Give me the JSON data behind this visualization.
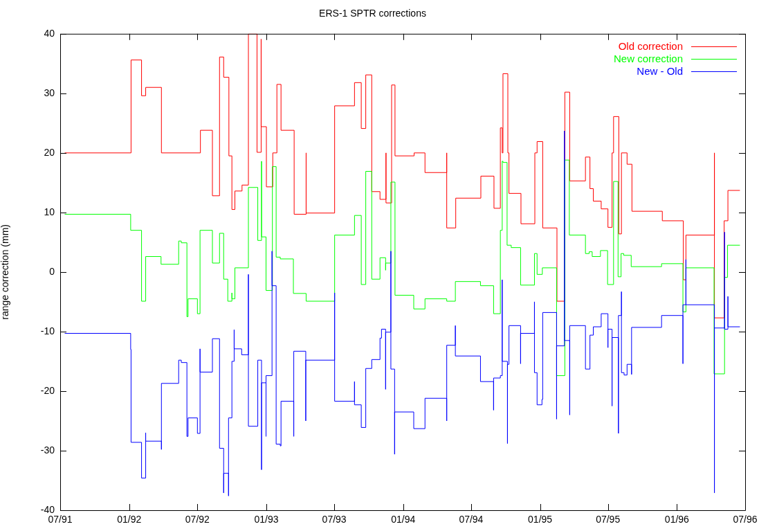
{
  "chart_data": {
    "type": "step",
    "title": "ERS-1 SPTR corrections",
    "ylabel": "range correction (mm)",
    "xlim": [
      "1991-07-01",
      "1996-07-01"
    ],
    "xticks": [
      {
        "value": "1991-07-01",
        "label": "07/91"
      },
      {
        "value": "1992-01-01",
        "label": "01/92"
      },
      {
        "value": "1992-07-01",
        "label": "07/92"
      },
      {
        "value": "1993-01-01",
        "label": "01/93"
      },
      {
        "value": "1993-07-01",
        "label": "07/93"
      },
      {
        "value": "1994-01-01",
        "label": "01/94"
      },
      {
        "value": "1994-07-01",
        "label": "07/94"
      },
      {
        "value": "1995-01-01",
        "label": "01/95"
      },
      {
        "value": "1995-07-01",
        "label": "07/95"
      },
      {
        "value": "1996-01-01",
        "label": "01/96"
      },
      {
        "value": "1996-07-01",
        "label": "07/96"
      }
    ],
    "ylim": [
      -40,
      40
    ],
    "yticks": [
      -40,
      -30,
      -20,
      -10,
      0,
      10,
      20,
      30,
      40
    ],
    "legend": "top right",
    "series": [
      {
        "name": "Old correction",
        "color": "#ff0000",
        "x": [
          "1991-07-13",
          "1992-01-06",
          "1992-02-03",
          "1992-02-14",
          "1992-03-27",
          "1992-07-09",
          "1992-08-10",
          "1992-08-29",
          "1992-09-09",
          "1992-09-23",
          "1992-10-01",
          "1992-10-09",
          "1992-10-28",
          "1992-11-14",
          "1992-12-07",
          "1992-12-18",
          "1992-12-18",
          "1993-01-01",
          "1993-01-18",
          "1993-01-29",
          "1993-02-09",
          "1993-03-16",
          "1993-04-17",
          "1993-04-17",
          "1993-07-02",
          "1993-08-24",
          "1993-09-11",
          "1993-09-23",
          "1993-10-09",
          "1993-10-31",
          "1993-11-16",
          "1993-11-16",
          "1993-12-01",
          "1993-12-10",
          "1994-01-30",
          "1994-02-28",
          "1994-04-27",
          "1994-04-27",
          "1994-05-21",
          "1994-07-27",
          "1994-08-31",
          "1994-09-17",
          "1994-09-22",
          "1994-09-24",
          "1994-10-07",
          "1994-10-10",
          "1994-11-11",
          "1994-12-18",
          "1994-12-24",
          "1995-01-08",
          "1995-02-15",
          "1995-03-08",
          "1995-03-21",
          "1995-05-02",
          "1995-05-14",
          "1995-05-23",
          "1995-06-13",
          "1995-07-01",
          "1995-07-12",
          "1995-07-16",
          "1995-07-30",
          "1995-08-06",
          "1995-08-21",
          "1995-09-03",
          "1995-11-23",
          "1996-01-18",
          "1996-01-25",
          "1996-04-10",
          "1996-04-10",
          "1996-05-06",
          "1996-05-16",
          "1996-06-17"
        ],
        "values": [
          20,
          35.6,
          29.6,
          31.0,
          20,
          23.8,
          12.8,
          36.1,
          32.7,
          19.5,
          10.5,
          13.6,
          14.6,
          40,
          20.1,
          39.1,
          24.4,
          14.3,
          20,
          31.5,
          23.8,
          9.7,
          20,
          9.9,
          27.9,
          31.8,
          24.1,
          33.1,
          13.5,
          12.2,
          20,
          11.6,
          31.4,
          19.5,
          20,
          16.7,
          20,
          7.4,
          12.4,
          16.1,
          10.7,
          24.2,
          20,
          33.3,
          20,
          13.2,
          8.1,
          20,
          21.9,
          7.4,
          -4.9,
          30.2,
          15.3,
          19.3,
          14.0,
          11.9,
          10.6,
          7.5,
          20,
          26.1,
          6.4,
          20,
          18.1,
          10.2,
          8.6,
          -1.3,
          6.2,
          20,
          -7.7,
          8.6,
          13.7,
          13.7
        ]
      },
      {
        "name": "New correction",
        "color": "#00ff00",
        "x": [
          "1991-07-13",
          "1992-01-05",
          "1992-02-03",
          "1992-02-14",
          "1992-03-26",
          "1992-05-12",
          "1992-05-19",
          "1992-06-03",
          "1992-06-06",
          "1992-07-01",
          "1992-07-08",
          "1992-08-10",
          "1992-08-29",
          "1992-09-09",
          "1992-09-20",
          "1992-10-01",
          "1992-10-01",
          "1992-10-09",
          "1992-11-14",
          "1992-12-09",
          "1992-12-19",
          "1992-12-19",
          "1992-12-31",
          "1993-01-17",
          "1993-01-27",
          "1993-02-07",
          "1993-03-14",
          "1993-04-17",
          "1993-07-02",
          "1993-08-24",
          "1993-09-11",
          "1993-09-23",
          "1993-10-09",
          "1993-10-31",
          "1993-11-15",
          "1993-11-15",
          "1993-11-29",
          "1993-12-10",
          "1994-01-29",
          "1994-02-28",
          "1994-04-27",
          "1994-05-20",
          "1994-07-26",
          "1994-08-30",
          "1994-09-17",
          "1994-09-22",
          "1994-09-24",
          "1994-10-05",
          "1994-10-16",
          "1994-11-10",
          "1994-12-17",
          "1994-12-24",
          "1995-01-07",
          "1995-02-14",
          "1995-03-08",
          "1995-03-20",
          "1995-05-02",
          "1995-05-12",
          "1995-05-20",
          "1995-06-11",
          "1995-06-30",
          "1995-07-16",
          "1995-07-28",
          "1995-08-05",
          "1995-08-12",
          "1995-09-01",
          "1995-11-21",
          "1996-01-17",
          "1996-01-25",
          "1996-04-09",
          "1996-05-07",
          "1996-05-15",
          "1996-06-17"
        ],
        "values": [
          9.7,
          7.0,
          -4.9,
          2.6,
          1.3,
          5.2,
          4.9,
          -7.5,
          -4.5,
          -7.0,
          7.0,
          1.5,
          6.5,
          -1.2,
          -4.9,
          -3.5,
          -4.5,
          0.7,
          14.2,
          5.3,
          18.6,
          5.9,
          -3.1,
          17.7,
          2.5,
          2.2,
          -3.6,
          -4.9,
          6.2,
          9.5,
          -2.1,
          16.9,
          -1.2,
          2.4,
          0.3,
          1.5,
          15.1,
          -3.9,
          -6.2,
          -4.5,
          -4.9,
          -1.6,
          -2.3,
          -7.0,
          7.0,
          18.6,
          18.4,
          4.5,
          4.1,
          -2.2,
          3.1,
          -0.4,
          0.7,
          -17.4,
          18.8,
          6.2,
          3.1,
          3.4,
          2.6,
          3.6,
          -2.1,
          15.2,
          -0.8,
          3.1,
          2.8,
          0.9,
          1.4,
          -6.7,
          0.7,
          -17.1,
          -0.9,
          4.5,
          4.5
        ]
      },
      {
        "name": "New - Old",
        "color": "#0000ff",
        "x": [
          "1991-07-13",
          "1992-01-05",
          "1992-01-06",
          "1992-02-03",
          "1992-02-14",
          "1992-02-14",
          "1992-03-27",
          "1992-03-27",
          "1992-05-12",
          "1992-05-19",
          "1992-06-03",
          "1992-06-06",
          "1992-07-01",
          "1992-07-08",
          "1992-07-08",
          "1992-08-10",
          "1992-08-29",
          "1992-09-09",
          "1992-09-09",
          "1992-09-22",
          "1992-09-22",
          "1992-10-01",
          "1992-10-07",
          "1992-10-07",
          "1992-10-27",
          "1992-11-14",
          "1992-11-14",
          "1992-12-09",
          "1992-12-19",
          "1992-12-19",
          "1992-12-31",
          "1992-12-31",
          "1993-01-16",
          "1993-01-16",
          "1993-01-27",
          "1993-02-07",
          "1993-02-09",
          "1993-03-15",
          "1993-03-15",
          "1993-04-16",
          "1993-04-16",
          "1993-07-02",
          "1993-07-02",
          "1993-08-24",
          "1993-08-24",
          "1993-09-11",
          "1993-09-23",
          "1993-10-09",
          "1993-10-31",
          "1993-11-04",
          "1993-11-15",
          "1993-11-15",
          "1993-11-29",
          "1993-11-29",
          "1993-12-09",
          "1993-12-09",
          "1994-01-29",
          "1994-02-28",
          "1994-04-27",
          "1994-04-27",
          "1994-05-20",
          "1994-05-20",
          "1994-07-26",
          "1994-08-30",
          "1994-08-30",
          "1994-09-17",
          "1994-09-22",
          "1994-09-22",
          "1994-10-06",
          "1994-10-06",
          "1994-10-10",
          "1994-11-10",
          "1994-11-10",
          "1994-12-17",
          "1994-12-17",
          "1994-12-24",
          "1995-01-06",
          "1995-01-08",
          "1995-02-14",
          "1995-02-14",
          "1995-03-07",
          "1995-03-07",
          "1995-03-21",
          "1995-03-21",
          "1995-05-02",
          "1995-05-14",
          "1995-05-23",
          "1995-06-13",
          "1995-07-01",
          "1995-07-01",
          "1995-07-12",
          "1995-07-12",
          "1995-07-29",
          "1995-07-29",
          "1995-08-06",
          "1995-08-06",
          "1995-08-13",
          "1995-08-21",
          "1995-09-02",
          "1995-09-02",
          "1995-11-21",
          "1996-01-17",
          "1996-01-17",
          "1996-01-25",
          "1996-01-25",
          "1996-04-10",
          "1996-04-10",
          "1996-05-07",
          "1996-05-07",
          "1996-05-16",
          "1996-05-16",
          "1996-06-17"
        ],
        "values": [
          -10.3,
          -13.0,
          -28.6,
          -34.6,
          -27.0,
          -28.4,
          -29.8,
          -18.7,
          -14.8,
          -15.2,
          -27.6,
          -24.5,
          -27.1,
          -12.9,
          -16.8,
          -11.2,
          -29.6,
          -37.1,
          -33.8,
          -37.6,
          -24.5,
          -15.0,
          -9.7,
          -12.9,
          -13.9,
          -0.4,
          -25.9,
          -14.8,
          -33.2,
          -18.6,
          -27.6,
          -17.4,
          3.5,
          -2.3,
          -28.9,
          -29.2,
          -21.7,
          -27.6,
          -13.3,
          -25.0,
          -14.8,
          -3.5,
          -21.7,
          -18.4,
          -22.3,
          -26.1,
          -16.2,
          -14.7,
          -11.1,
          -9.6,
          -19.7,
          -10.1,
          3.5,
          -16.3,
          -30.6,
          -23.5,
          -26.3,
          -21.2,
          -25.0,
          -12.3,
          -9.0,
          -14.1,
          -18.4,
          -23.2,
          -17.8,
          -17.4,
          -1.3,
          -15.0,
          -28.8,
          -15.5,
          -9.0,
          -15.4,
          -10.3,
          -5.0,
          -16.9,
          -22.3,
          -21.4,
          -6.8,
          -24.7,
          -12.4,
          23.7,
          -11.5,
          -24.0,
          -9.0,
          -16.3,
          -10.6,
          -9.2,
          -7.0,
          -12.7,
          -9.6,
          -22.5,
          -11.0,
          -27.1,
          -7.3,
          -3.3,
          -16.9,
          -17.3,
          -15.5,
          -17.2,
          -9.3,
          -7.3,
          -15.4,
          -5.5,
          2.1,
          -5.5,
          -37.1,
          -9.4,
          6.7,
          -9.6,
          -4.1,
          -9.2,
          -9.2
        ]
      }
    ]
  }
}
